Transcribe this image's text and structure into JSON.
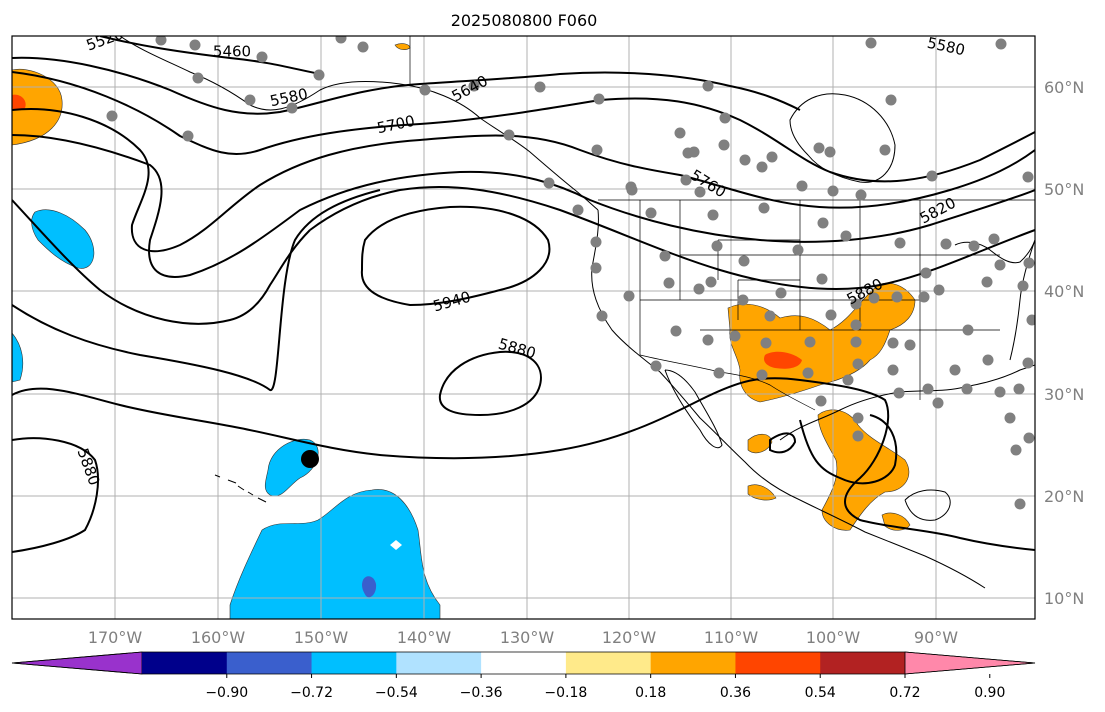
{
  "title": "2025080800 F060",
  "map": {
    "lon_ticks": [
      "170°W",
      "160°W",
      "150°W",
      "140°W",
      "130°W",
      "120°W",
      "110°W",
      "100°W",
      "90°W"
    ],
    "lat_ticks": [
      "60°N",
      "50°N",
      "40°N",
      "30°N",
      "20°N",
      "10°N"
    ],
    "gridlines": true,
    "contour_labels": [
      "5460",
      "5580",
      "5640",
      "5700",
      "5760",
      "5820",
      "5880",
      "5940",
      "5880",
      "5880",
      "5580",
      "5520"
    ],
    "marker": "black-dot"
  },
  "colorbar": {
    "ticks": [
      "−0.90",
      "−0.72",
      "−0.54",
      "−0.36",
      "−0.18",
      "0.18",
      "0.36",
      "0.54",
      "0.72",
      "0.90"
    ],
    "colors": [
      "#9932cc",
      "#00008b",
      "#3a5fcd",
      "#00bfff",
      "#b0e2ff",
      "#ffffff",
      "#ffea8a",
      "#ffa500",
      "#ff4500",
      "#b22222",
      "#ff88aa"
    ]
  }
}
